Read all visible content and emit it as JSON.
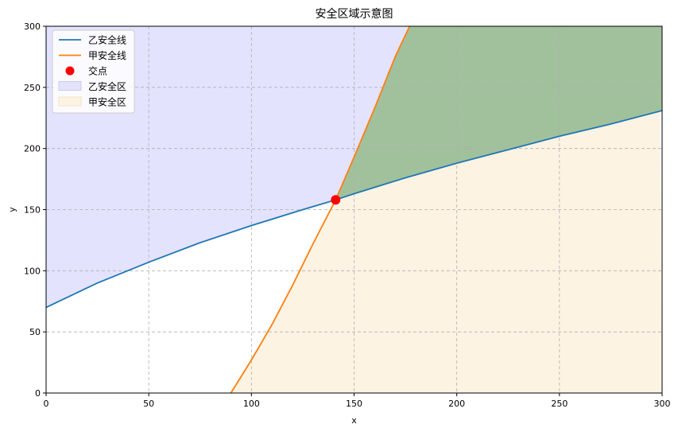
{
  "chart_data": {
    "type": "line",
    "title": "安全区域示意图",
    "xlabel": "x",
    "ylabel": "y",
    "xlim": [
      0,
      300
    ],
    "ylim": [
      0,
      300
    ],
    "xticks": [
      0,
      50,
      100,
      150,
      200,
      250,
      300
    ],
    "yticks": [
      0,
      50,
      100,
      150,
      200,
      250,
      300
    ],
    "grid": true,
    "legend_position": "top-left",
    "series": [
      {
        "name": "乙安全线",
        "color": "#1f77b4",
        "x": [
          0,
          25,
          50,
          75,
          100,
          125,
          141,
          150,
          175,
          200,
          225,
          250,
          275,
          300
        ],
        "y": [
          70,
          90,
          107,
          123,
          137,
          150,
          158,
          163,
          176,
          188,
          199,
          210,
          220,
          231
        ]
      },
      {
        "name": "甲安全线",
        "color": "#ff7f0e",
        "x": [
          90,
          100,
          110,
          120,
          130,
          141,
          150,
          160,
          170,
          177
        ],
        "y": [
          0,
          27,
          56,
          88,
          122,
          158,
          193,
          233,
          275,
          300
        ]
      }
    ],
    "intersection": {
      "name": "交点",
      "x": 141,
      "y": 158,
      "color": "#ff0000"
    },
    "areas": [
      {
        "name": "乙安全区",
        "color": "#e3e3fe"
      },
      {
        "name": "甲安全区",
        "color": "#fdf3e3"
      }
    ],
    "overlap_color": "#a1c09c"
  }
}
